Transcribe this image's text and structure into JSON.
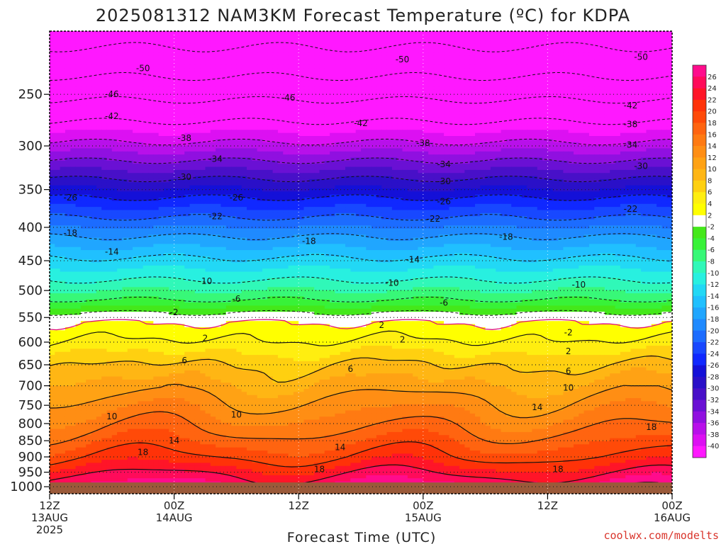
{
  "title": "2025081312 NAM3KM Forecast Temperature (ºC) for KDPA",
  "credit": "coolwx.com/modelts",
  "chart_data": {
    "type": "heatmap",
    "xlabel": "Forecast Time (UTC)",
    "ylabel": "",
    "x_ticks": [
      {
        "hour": 0,
        "lines": [
          "12Z",
          "13AUG",
          "2025"
        ]
      },
      {
        "hour": 12,
        "lines": [
          "00Z",
          "14AUG"
        ]
      },
      {
        "hour": 24,
        "lines": [
          "12Z"
        ]
      },
      {
        "hour": 36,
        "lines": [
          "00Z",
          "15AUG"
        ]
      },
      {
        "hour": 48,
        "lines": [
          "12Z"
        ]
      },
      {
        "hour": 60,
        "lines": [
          "00Z",
          "16AUG"
        ]
      }
    ],
    "xlim": [
      0,
      60
    ],
    "y_ticks": [
      "250",
      "300",
      "350",
      "400",
      "450",
      "500",
      "550",
      "600",
      "650",
      "700",
      "750",
      "800",
      "850",
      "900",
      "950",
      "1000"
    ],
    "y_levels": [
      250,
      300,
      350,
      400,
      450,
      500,
      550,
      600,
      650,
      700,
      750,
      800,
      850,
      900,
      950,
      1000
    ],
    "ylim": [
      200,
      1025
    ],
    "yscale": "log",
    "y_reversed": true,
    "surface_pressure": 985,
    "colorbar": {
      "labels": [
        "26",
        "24",
        "22",
        "20",
        "18",
        "16",
        "14",
        "12",
        "10",
        "8",
        "6",
        "4",
        "2",
        "-2",
        "-4",
        "-6",
        "-8",
        "-10",
        "-12",
        "-14",
        "-16",
        "-18",
        "-20",
        "-22",
        "-24",
        "-26",
        "-28",
        "-30",
        "-32",
        "-34",
        "-36",
        "-38",
        "-40"
      ],
      "colors": [
        "#ff0c8c",
        "#ff0b5a",
        "#ff1528",
        "#ff3208",
        "#ff4a08",
        "#ff6410",
        "#ff7a12",
        "#ff8e14",
        "#ffa214",
        "#ffb614",
        "#ffd010",
        "#ffee10",
        "#ffff00",
        "#ffffff",
        "#44e81a",
        "#38f238",
        "#38f878",
        "#30f8b8",
        "#28f0e0",
        "#22d8f5",
        "#20c0ff",
        "#20a6ff",
        "#1f8aff",
        "#1c6cff",
        "#1848ff",
        "#1028ff",
        "#1410d8",
        "#2a10c8",
        "#4810c8",
        "#6a10d4",
        "#9010e0",
        "#b810ea",
        "#dc10f2",
        "#ff18ff"
      ]
    },
    "contour_labels": [
      {
        "v": "-50",
        "x": 9,
        "p": 228
      },
      {
        "v": "-50",
        "x": 34,
        "p": 221
      },
      {
        "v": "-50",
        "x": 57,
        "p": 219
      },
      {
        "v": "-46",
        "x": 6,
        "p": 250
      },
      {
        "v": "-46",
        "x": 23,
        "p": 253
      },
      {
        "v": "-42",
        "x": 6,
        "p": 270
      },
      {
        "v": "-42",
        "x": 30,
        "p": 277
      },
      {
        "v": "-42",
        "x": 56,
        "p": 260
      },
      {
        "v": "-38",
        "x": 13,
        "p": 292
      },
      {
        "v": "-38",
        "x": 36,
        "p": 297
      },
      {
        "v": "-38",
        "x": 56,
        "p": 278
      },
      {
        "v": "-34",
        "x": 16,
        "p": 314
      },
      {
        "v": "-34",
        "x": 38,
        "p": 320
      },
      {
        "v": "-34",
        "x": 56,
        "p": 299
      },
      {
        "v": "-30",
        "x": 13,
        "p": 335
      },
      {
        "v": "-30",
        "x": 38,
        "p": 340
      },
      {
        "v": "-30",
        "x": 57,
        "p": 322
      },
      {
        "v": "-26",
        "x": 2,
        "p": 360
      },
      {
        "v": "-26",
        "x": 18,
        "p": 360
      },
      {
        "v": "-26",
        "x": 38,
        "p": 365
      },
      {
        "v": "-22",
        "x": 16,
        "p": 385
      },
      {
        "v": "-22",
        "x": 37,
        "p": 388
      },
      {
        "v": "-22",
        "x": 56,
        "p": 375
      },
      {
        "v": "-18",
        "x": 2,
        "p": 408
      },
      {
        "v": "-18",
        "x": 25,
        "p": 420
      },
      {
        "v": "-18",
        "x": 44,
        "p": 414
      },
      {
        "v": "-14",
        "x": 6,
        "p": 436
      },
      {
        "v": "-14",
        "x": 35,
        "p": 448
      },
      {
        "v": "-10",
        "x": 15,
        "p": 484
      },
      {
        "v": "-10",
        "x": 33,
        "p": 487
      },
      {
        "v": "-10",
        "x": 51,
        "p": 490
      },
      {
        "v": "-6",
        "x": 18,
        "p": 515
      },
      {
        "v": "-6",
        "x": 38,
        "p": 522
      },
      {
        "v": "-2",
        "x": 12,
        "p": 540
      },
      {
        "v": "2",
        "x": 32,
        "p": 565
      },
      {
        "v": "-2",
        "x": 50,
        "p": 580
      },
      {
        "v": "2",
        "x": 15,
        "p": 592
      },
      {
        "v": "2",
        "x": 34,
        "p": 595
      },
      {
        "v": "2",
        "x": 50,
        "p": 620
      },
      {
        "v": "6",
        "x": 13,
        "p": 640
      },
      {
        "v": "6",
        "x": 29,
        "p": 660
      },
      {
        "v": "6",
        "x": 50,
        "p": 665
      },
      {
        "v": "10",
        "x": 6,
        "p": 780
      },
      {
        "v": "10",
        "x": 18,
        "p": 775
      },
      {
        "v": "10",
        "x": 50,
        "p": 705
      },
      {
        "v": "14",
        "x": 12,
        "p": 850
      },
      {
        "v": "14",
        "x": 28,
        "p": 870
      },
      {
        "v": "14",
        "x": 47,
        "p": 755
      },
      {
        "v": "18",
        "x": 9,
        "p": 885
      },
      {
        "v": "18",
        "x": 26,
        "p": 940
      },
      {
        "v": "18",
        "x": 49,
        "p": 940
      },
      {
        "v": "18",
        "x": 58,
        "p": 810
      }
    ]
  }
}
